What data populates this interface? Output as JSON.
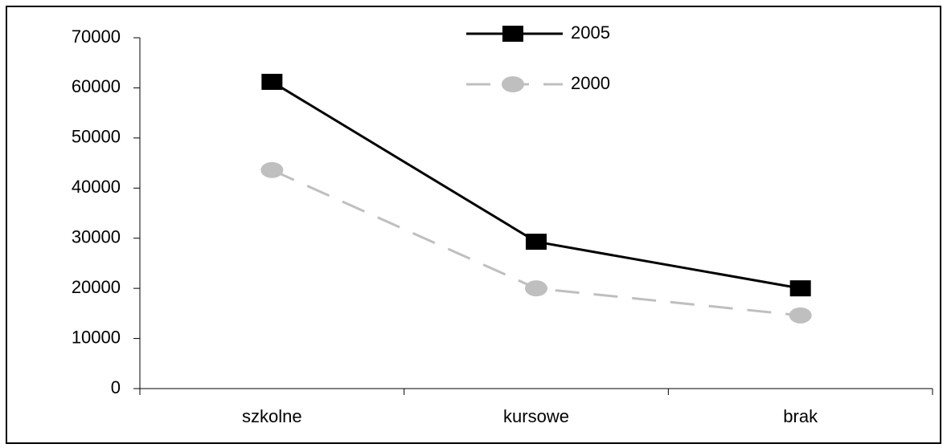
{
  "chart_data": {
    "type": "line",
    "categories": [
      "szkolne",
      "kursowe",
      "brak"
    ],
    "series": [
      {
        "name": "2005",
        "color": "#000000",
        "marker": "square",
        "dashed": false,
        "values": [
          61200,
          29300,
          20000
        ]
      },
      {
        "name": "2000",
        "color": "#bfbfbf",
        "marker": "circle",
        "dashed": true,
        "values": [
          43600,
          20000,
          14600
        ]
      }
    ],
    "ylim": [
      0,
      70000
    ],
    "yticks": [
      0,
      10000,
      20000,
      30000,
      40000,
      50000,
      60000,
      70000
    ],
    "grid": false,
    "legend": "top"
  }
}
